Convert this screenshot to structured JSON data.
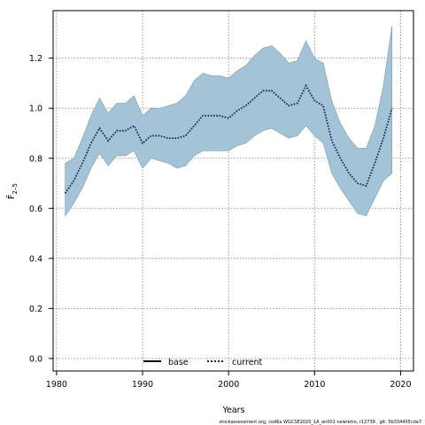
{
  "chart_data": {
    "type": "area",
    "xlabel": "Years",
    "ylabel": "F̄",
    "ylabel_sub": "2–5",
    "xlim": [
      1979.6,
      2021.5
    ],
    "ylim": [
      -0.05,
      1.39
    ],
    "x_ticks": [
      1980,
      1990,
      2000,
      2010,
      2020
    ],
    "y_ticks": [
      0.0,
      0.2,
      0.4,
      0.6,
      0.8,
      1.0,
      1.2
    ],
    "y_tick_labels": [
      "0.0",
      "0.2",
      "0.4",
      "0.6",
      "0.8",
      "1.0",
      "1.2"
    ],
    "grid": true,
    "legend_placement": "bottom-center",
    "colors": {
      "band_fill": "#a3c3d6",
      "band_stroke": "#7e9caf",
      "current": "#0b2a5a",
      "base": "#000000",
      "grid": "#666666"
    },
    "x": [
      1981,
      1982,
      1983,
      1984,
      1985,
      1986,
      1987,
      1988,
      1989,
      1990,
      1991,
      1992,
      1993,
      1994,
      1995,
      1996,
      1997,
      1998,
      1999,
      2000,
      2001,
      2002,
      2003,
      2004,
      2005,
      2006,
      2007,
      2008,
      2009,
      2010,
      2011,
      2012,
      2013,
      2014,
      2015,
      2016,
      2017,
      2018,
      2019
    ],
    "series": [
      {
        "name": "current",
        "role": "median",
        "values": [
          0.66,
          0.71,
          0.78,
          0.86,
          0.92,
          0.87,
          0.91,
          0.91,
          0.93,
          0.86,
          0.89,
          0.89,
          0.88,
          0.88,
          0.89,
          0.93,
          0.97,
          0.97,
          0.97,
          0.96,
          0.99,
          1.01,
          1.04,
          1.07,
          1.07,
          1.04,
          1.01,
          1.02,
          1.09,
          1.03,
          1.01,
          0.87,
          0.8,
          0.74,
          0.7,
          0.69,
          0.78,
          0.88,
          1.0
        ]
      },
      {
        "name": "upper",
        "role": "band-upper",
        "values": [
          0.78,
          0.8,
          0.88,
          0.97,
          1.04,
          0.98,
          1.02,
          1.02,
          1.05,
          0.97,
          1.0,
          1.0,
          1.01,
          1.02,
          1.05,
          1.11,
          1.14,
          1.13,
          1.13,
          1.12,
          1.15,
          1.17,
          1.21,
          1.24,
          1.25,
          1.22,
          1.18,
          1.19,
          1.27,
          1.2,
          1.18,
          1.03,
          0.94,
          0.88,
          0.84,
          0.84,
          0.93,
          1.09,
          1.33
        ]
      },
      {
        "name": "lower",
        "role": "band-lower",
        "values": [
          0.57,
          0.62,
          0.68,
          0.76,
          0.82,
          0.77,
          0.81,
          0.81,
          0.83,
          0.76,
          0.8,
          0.79,
          0.78,
          0.76,
          0.77,
          0.81,
          0.83,
          0.83,
          0.83,
          0.83,
          0.85,
          0.86,
          0.89,
          0.91,
          0.92,
          0.9,
          0.88,
          0.89,
          0.93,
          0.89,
          0.86,
          0.74,
          0.68,
          0.63,
          0.58,
          0.57,
          0.64,
          0.71,
          0.74
        ]
      }
    ],
    "legend": [
      {
        "label": "base",
        "style": "solid"
      },
      {
        "label": "current",
        "style": "dotted"
      }
    ]
  },
  "footer_text": "stockassessment.org,  cod6a  WGCSE2020_1A_an001  newretro,  r12739 ,  git:  5b334405cda7"
}
